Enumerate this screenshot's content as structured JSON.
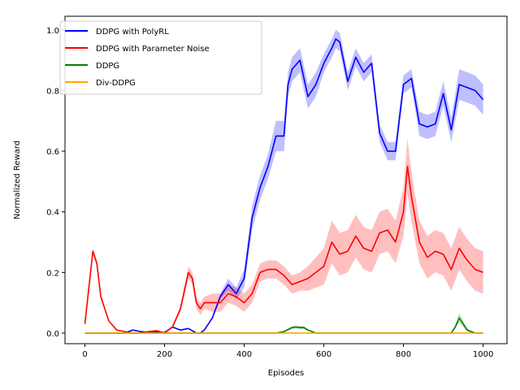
{
  "chart_data": {
    "type": "line",
    "title": "",
    "xlabel": "Episodes",
    "ylabel": "Normalized Reward",
    "xlim": [
      -50,
      1060
    ],
    "ylim": [
      -0.035,
      1.045
    ],
    "xticks": [
      0,
      200,
      400,
      600,
      800,
      1000
    ],
    "yticks": [
      0.0,
      0.2,
      0.4,
      0.6,
      0.8,
      1.0
    ],
    "grid": false,
    "legend_position": "top-left",
    "series": [
      {
        "name": "DDPG with PolyRL",
        "color": "#0000ff",
        "x": [
          0,
          20,
          40,
          60,
          80,
          100,
          120,
          140,
          160,
          180,
          200,
          220,
          240,
          260,
          280,
          290,
          300,
          320,
          340,
          360,
          380,
          400,
          420,
          440,
          460,
          480,
          500,
          510,
          520,
          540,
          560,
          580,
          600,
          620,
          630,
          640,
          660,
          680,
          700,
          720,
          740,
          760,
          780,
          800,
          820,
          840,
          860,
          880,
          900,
          920,
          940,
          960,
          980,
          1000
        ],
        "y": [
          0,
          0,
          0,
          0,
          0,
          0,
          0.01,
          0.005,
          0.002,
          0.003,
          0.002,
          0.02,
          0.01,
          0.015,
          0,
          0,
          0.01,
          0.05,
          0.12,
          0.16,
          0.13,
          0.18,
          0.38,
          0.48,
          0.55,
          0.65,
          0.65,
          0.82,
          0.87,
          0.9,
          0.78,
          0.82,
          0.89,
          0.94,
          0.97,
          0.96,
          0.83,
          0.91,
          0.86,
          0.89,
          0.66,
          0.6,
          0.6,
          0.82,
          0.84,
          0.69,
          0.68,
          0.69,
          0.79,
          0.67,
          0.82,
          0.81,
          0.8,
          0.77
        ],
        "band": [
          0,
          0,
          0,
          0,
          0,
          0,
          0,
          0,
          0,
          0,
          0,
          0,
          0,
          0,
          0,
          0,
          0,
          0.005,
          0.01,
          0.02,
          0.02,
          0.03,
          0.04,
          0.04,
          0.04,
          0.05,
          0.05,
          0.04,
          0.04,
          0.04,
          0.04,
          0.04,
          0.03,
          0.03,
          0.03,
          0.03,
          0.03,
          0.03,
          0.03,
          0.03,
          0.03,
          0.03,
          0.03,
          0.03,
          0.03,
          0.04,
          0.04,
          0.04,
          0.04,
          0.04,
          0.05,
          0.05,
          0.05,
          0.05
        ]
      },
      {
        "name": "DDPG with Parameter Noise",
        "color": "#ff0000",
        "x": [
          0,
          10,
          20,
          30,
          40,
          60,
          80,
          100,
          120,
          140,
          160,
          180,
          200,
          220,
          240,
          260,
          270,
          280,
          290,
          300,
          320,
          340,
          360,
          380,
          400,
          420,
          440,
          460,
          480,
          500,
          520,
          540,
          560,
          580,
          600,
          620,
          630,
          640,
          660,
          680,
          700,
          720,
          740,
          760,
          780,
          800,
          810,
          820,
          840,
          860,
          880,
          900,
          920,
          940,
          960,
          980,
          1000
        ],
        "y": [
          0.03,
          0.15,
          0.27,
          0.23,
          0.12,
          0.04,
          0.01,
          0.005,
          0,
          0,
          0.005,
          0.008,
          0,
          0.02,
          0.08,
          0.2,
          0.18,
          0.1,
          0.08,
          0.1,
          0.1,
          0.1,
          0.13,
          0.12,
          0.1,
          0.13,
          0.2,
          0.21,
          0.21,
          0.19,
          0.16,
          0.17,
          0.18,
          0.2,
          0.22,
          0.3,
          0.28,
          0.26,
          0.27,
          0.32,
          0.28,
          0.27,
          0.33,
          0.34,
          0.3,
          0.4,
          0.55,
          0.45,
          0.3,
          0.25,
          0.27,
          0.26,
          0.21,
          0.28,
          0.24,
          0.21,
          0.2
        ],
        "band": [
          0,
          0,
          0.01,
          0.01,
          0.01,
          0,
          0,
          0,
          0,
          0,
          0,
          0,
          0,
          0.005,
          0.01,
          0.02,
          0.02,
          0.02,
          0.02,
          0.02,
          0.03,
          0.03,
          0.03,
          0.03,
          0.03,
          0.03,
          0.03,
          0.03,
          0.03,
          0.03,
          0.03,
          0.03,
          0.04,
          0.05,
          0.06,
          0.07,
          0.07,
          0.07,
          0.07,
          0.07,
          0.07,
          0.07,
          0.07,
          0.07,
          0.07,
          0.08,
          0.09,
          0.08,
          0.07,
          0.07,
          0.07,
          0.07,
          0.07,
          0.07,
          0.07,
          0.07,
          0.07
        ]
      },
      {
        "name": "DDPG",
        "color": "#008000",
        "x": [
          0,
          100,
          200,
          300,
          400,
          480,
          500,
          520,
          530,
          540,
          550,
          560,
          580,
          600,
          700,
          800,
          900,
          920,
          930,
          940,
          950,
          960,
          980,
          1000
        ],
        "y": [
          0,
          0,
          0,
          0,
          0,
          0,
          0.005,
          0.018,
          0.02,
          0.018,
          0.018,
          0.01,
          0,
          0,
          0,
          0,
          0,
          0,
          0.02,
          0.05,
          0.03,
          0.01,
          0,
          0
        ],
        "band": [
          0,
          0,
          0,
          0,
          0,
          0,
          0.002,
          0.005,
          0.005,
          0.005,
          0.005,
          0.003,
          0,
          0,
          0,
          0,
          0,
          0,
          0.005,
          0.015,
          0.01,
          0.005,
          0,
          0
        ]
      },
      {
        "name": "Div-DDPG",
        "color": "#ffa500",
        "x": [
          0,
          200,
          400,
          600,
          800,
          1000
        ],
        "y": [
          0,
          0,
          0,
          0,
          0,
          0
        ],
        "band": [
          0,
          0,
          0,
          0,
          0,
          0
        ]
      }
    ]
  }
}
